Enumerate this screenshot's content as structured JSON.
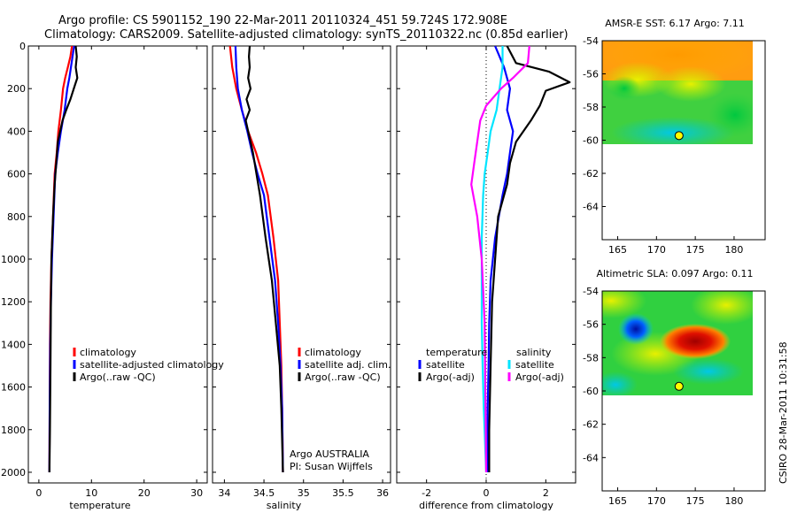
{
  "header": {
    "line1": "Argo profile: CS 5901152_190 22-Mar-2011 20110324_451 59.724S 172.908E",
    "line2": "Climatology: CARS2009. Satellite-adjusted climatology: synTS_20110322.nc (0.85d earlier)"
  },
  "colors": {
    "climatology": "#ff0000",
    "satellite": "#0000ff",
    "argo": "#000000",
    "sat_sal": "#00e5ff",
    "argo_sal": "#ff00ff",
    "marker": "#ffff00"
  },
  "chart_data": [
    {
      "id": "temperature",
      "type": "line",
      "xlabel": "temperature",
      "ylabel": "",
      "xlim": [
        -2,
        32
      ],
      "ylim": [
        2050,
        0
      ],
      "y_inverted": true,
      "xticks": [
        "0",
        "10",
        "20",
        "30"
      ],
      "yticks": [
        "0",
        "200",
        "400",
        "600",
        "800",
        "1000",
        "1200",
        "1400",
        "1600",
        "1800",
        "2000"
      ],
      "legend": [
        "climatology",
        "satellite-adjusted climatology",
        "Argo(..raw -QC)"
      ],
      "legend_position": "lower-right",
      "series": [
        {
          "name": "climatology",
          "color": "#ff0000",
          "x": [
            6.3,
            6.0,
            5.5,
            5.0,
            4.6,
            4.2,
            3.7,
            3.4,
            3.0,
            2.7,
            2.4,
            2.2,
            2.1,
            2.05,
            2.0
          ],
          "y": [
            0,
            50,
            100,
            150,
            200,
            300,
            400,
            500,
            600,
            800,
            1000,
            1200,
            1400,
            1700,
            2000
          ]
        },
        {
          "name": "satellite-adjusted climatology",
          "color": "#0000ff",
          "x": [
            6.7,
            6.4,
            6.1,
            5.8,
            5.4,
            4.9,
            4.2,
            3.6,
            3.1,
            2.8,
            2.5,
            2.3,
            2.15,
            2.05,
            2.0
          ],
          "y": [
            0,
            50,
            100,
            150,
            200,
            300,
            400,
            500,
            600,
            800,
            1000,
            1200,
            1400,
            1700,
            2000
          ]
        },
        {
          "name": "Argo(..raw -QC)",
          "color": "#000000",
          "x": [
            7.0,
            7.2,
            7.0,
            7.3,
            6.9,
            6.0,
            5.2,
            4.5,
            3.6,
            3.3,
            3.0,
            2.7,
            2.4,
            2.3,
            2.2,
            2.1,
            2.0
          ],
          "y": [
            0,
            50,
            100,
            150,
            180,
            250,
            300,
            350,
            450,
            550,
            650,
            800,
            1000,
            1200,
            1500,
            1800,
            2000
          ]
        }
      ]
    },
    {
      "id": "salinity",
      "type": "line",
      "xlabel": "salinity",
      "ylabel": "",
      "xlim": [
        33.85,
        36.1
      ],
      "ylim": [
        2050,
        0
      ],
      "y_inverted": true,
      "xticks": [
        "34",
        "34.5",
        "35",
        "35.5",
        "36"
      ],
      "legend": [
        "climatology",
        "satellite adj. clim.",
        "Argo(..raw -QC)"
      ],
      "legend_position": "lower-right",
      "annotations": [
        "Argo AUSTRALIA",
        "PI: Susan Wijffels"
      ],
      "series": [
        {
          "name": "climatology",
          "color": "#ff0000",
          "x": [
            34.07,
            34.1,
            34.15,
            34.22,
            34.3,
            34.4,
            34.48,
            34.55,
            34.62,
            34.68,
            34.7,
            34.72,
            34.73,
            34.74
          ],
          "y": [
            0,
            100,
            200,
            300,
            400,
            500,
            600,
            700,
            900,
            1100,
            1300,
            1500,
            1700,
            2000
          ]
        },
        {
          "name": "satellite adj. clim.",
          "color": "#0000ff",
          "x": [
            34.14,
            34.15,
            34.17,
            34.22,
            34.29,
            34.35,
            34.42,
            34.5,
            34.57,
            34.64,
            34.68,
            34.71,
            34.73,
            34.74
          ],
          "y": [
            0,
            100,
            200,
            300,
            400,
            500,
            600,
            700,
            900,
            1100,
            1300,
            1500,
            1700,
            2000
          ]
        },
        {
          "name": "Argo(..raw -QC)",
          "color": "#000000",
          "x": [
            34.32,
            34.31,
            34.32,
            34.3,
            34.33,
            34.28,
            34.32,
            34.27,
            34.36,
            34.45,
            34.52,
            34.6,
            34.65,
            34.7,
            34.72,
            34.74
          ],
          "y": [
            0,
            50,
            100,
            150,
            200,
            250,
            300,
            350,
            500,
            700,
            900,
            1100,
            1300,
            1500,
            1700,
            2000
          ]
        }
      ]
    },
    {
      "id": "difference",
      "type": "line",
      "xlabel": "difference from climatology",
      "ylabel": "",
      "xlim": [
        -3,
        3
      ],
      "ylim": [
        2050,
        0
      ],
      "y_inverted": true,
      "xticks": [
        "-2",
        "0",
        "2"
      ],
      "legend_left_title": "temperature",
      "legend_right_title": "salinity",
      "legend": [
        "satellite",
        "Argo(-adj)",
        "satellite",
        "Argo(-adj)"
      ],
      "series": [
        {
          "name": "satellite",
          "group": "temperature",
          "color": "#0000ff",
          "x": [
            0.3,
            0.6,
            0.8,
            0.7,
            0.9,
            0.8,
            0.7,
            0.55,
            0.3,
            0.15,
            0.1,
            0.08,
            0.05,
            0.05
          ],
          "y": [
            0,
            100,
            200,
            300,
            400,
            500,
            600,
            700,
            900,
            1100,
            1300,
            1500,
            1700,
            2000
          ]
        },
        {
          "name": "Argo(-adj)",
          "group": "temperature",
          "color": "#000000",
          "x": [
            0.7,
            1.0,
            2.1,
            2.8,
            2.0,
            1.8,
            1.5,
            1.0,
            0.8,
            0.7,
            0.4,
            0.3,
            0.2,
            0.15,
            0.1,
            0.1
          ],
          "y": [
            0,
            80,
            120,
            170,
            210,
            280,
            350,
            450,
            550,
            650,
            800,
            1000,
            1200,
            1500,
            1800,
            2000
          ]
        },
        {
          "name": "satellite",
          "group": "salinity",
          "color": "#00e5ff",
          "x": [
            0.55,
            0.55,
            0.45,
            0.35,
            0.15,
            0.05,
            -0.05,
            -0.1,
            -0.15,
            -0.15,
            -0.15,
            -0.12,
            -0.08,
            0.0
          ],
          "y": [
            0,
            100,
            200,
            300,
            400,
            500,
            600,
            700,
            900,
            1100,
            1300,
            1500,
            1700,
            2000
          ]
        },
        {
          "name": "Argo(-adj)",
          "group": "salinity",
          "color": "#ff00ff",
          "x": [
            1.45,
            1.4,
            0.9,
            0.5,
            0.0,
            -0.2,
            -0.3,
            -0.4,
            -0.5,
            -0.3,
            -0.15,
            -0.05,
            0.0
          ],
          "y": [
            0,
            80,
            150,
            200,
            280,
            350,
            450,
            550,
            650,
            800,
            1000,
            1300,
            2000
          ]
        }
      ]
    },
    {
      "id": "amsr_sst",
      "type": "heatmap",
      "title": "AMSR-E SST: 6.17  Argo: 7.11",
      "xlim": [
        163,
        184
      ],
      "ylim": [
        -66,
        -54
      ],
      "xticks": [
        "165",
        "170",
        "175",
        "180"
      ],
      "yticks": [
        "-54",
        "-56",
        "-58",
        "-60",
        "-62",
        "-64"
      ],
      "marker": {
        "lon": 172.908,
        "lat": -59.724
      }
    },
    {
      "id": "altimetric_sla",
      "type": "heatmap",
      "title": "Altimetric SLA: 0.097  Argo: 0.11",
      "xlim": [
        163,
        184
      ],
      "ylim": [
        -66,
        -54
      ],
      "xticks": [
        "165",
        "170",
        "175",
        "180"
      ],
      "yticks": [
        "-54",
        "-56",
        "-58",
        "-60",
        "-62",
        "-64"
      ],
      "marker": {
        "lon": 172.908,
        "lat": -59.724
      }
    }
  ],
  "side_stamp": "CSIRO 28-Mar-2011 10:31:58"
}
